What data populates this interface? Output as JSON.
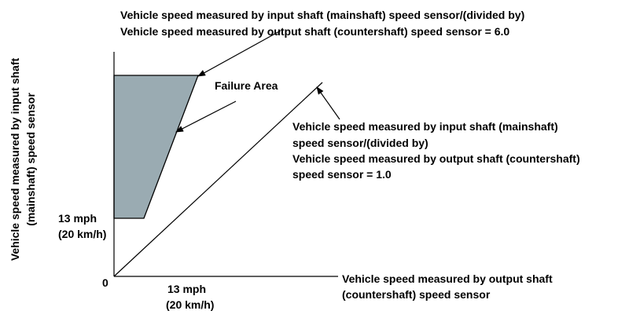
{
  "colors": {
    "failure_fill": "#9aabb2",
    "line": "#000000",
    "background": "#ffffff"
  },
  "labels": {
    "top_ratio_line1": "Vehicle speed measured by input shaft (mainshaft) speed sensor/(divided by)",
    "top_ratio_line2": "Vehicle speed measured by output shaft (countershaft) speed sensor = 6.0",
    "failure_area": "Failure Area",
    "right_ratio_line1": "Vehicle speed measured by input shaft (mainshaft)",
    "right_ratio_line2": "speed sensor/(divided by)",
    "right_ratio_line3": "Vehicle speed measured by output shaft (countershaft)",
    "right_ratio_line4": "speed sensor = 1.0",
    "y_axis_line1": "Vehicle speed measured by input shaft",
    "y_axis_line2": "(mainshaft) speed sensor",
    "y_threshold_mph": "13 mph",
    "y_threshold_kmh": "(20 km/h)",
    "origin": "0",
    "x_threshold_mph": "13 mph",
    "x_threshold_kmh": "(20 km/h)",
    "x_axis_line1": "Vehicle speed measured by output shaft",
    "x_axis_line2": "(countershaft) speed sensor"
  }
}
